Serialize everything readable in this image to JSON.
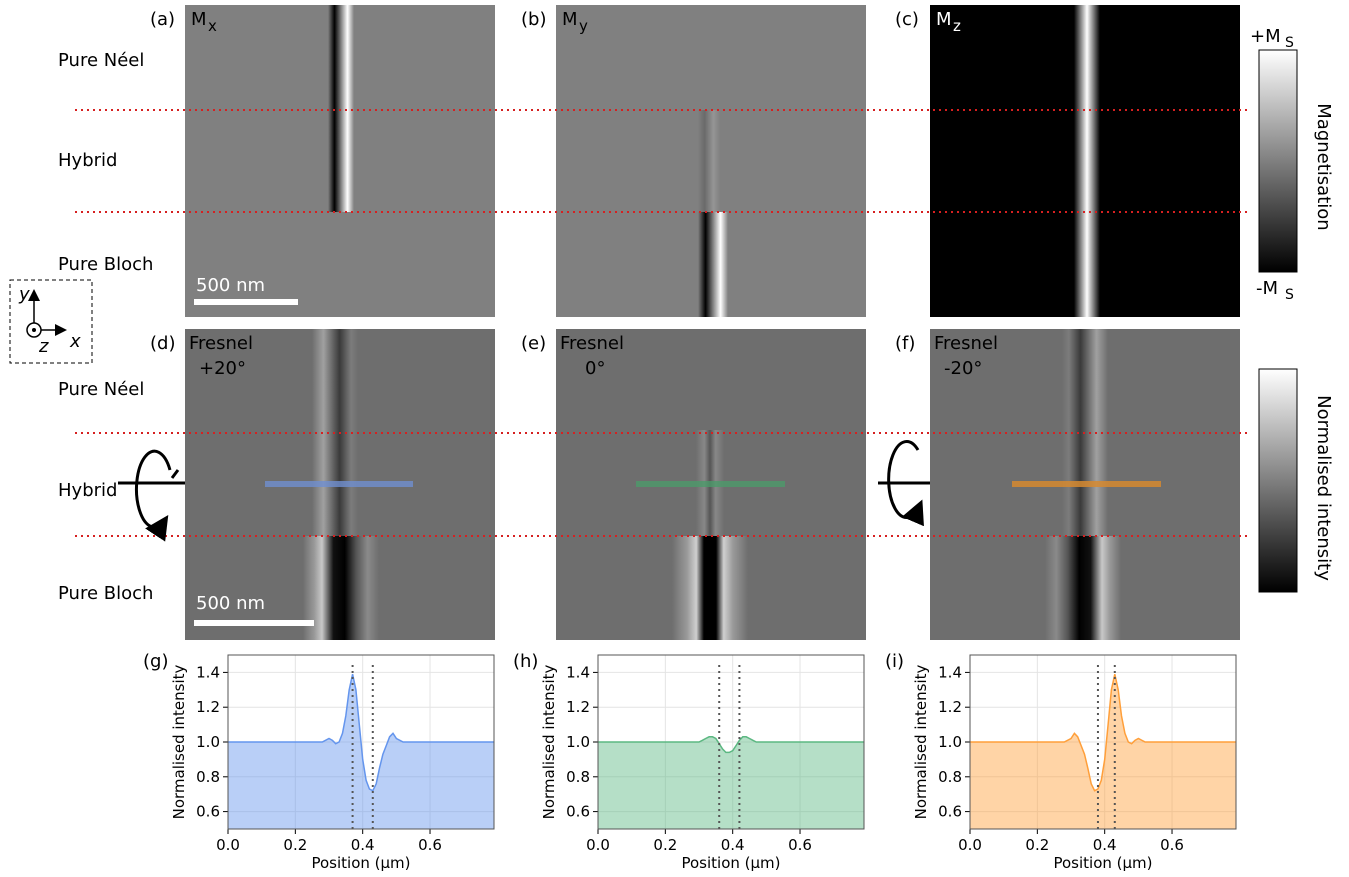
{
  "panels": [
    {
      "label": "(a)",
      "title": "M",
      "subscript": "x"
    },
    {
      "label": "(b)",
      "title": "M",
      "subscript": "y"
    },
    {
      "label": "(c)",
      "title": "M",
      "subscript": "z"
    },
    {
      "label": "(d)",
      "title": "Fresnel",
      "angle": "+20°"
    },
    {
      "label": "(e)",
      "title": "Fresnel",
      "angle": "0°"
    },
    {
      "label": "(f)",
      "title": "Fresnel",
      "angle": "-20°"
    }
  ],
  "row_labels": [
    "Pure Néel",
    "Hybrid",
    "Pure Bloch"
  ],
  "scale_bar": "500 nm",
  "axes_icon": {
    "y": "y",
    "z": "z",
    "x": "x"
  },
  "colorbars": [
    {
      "label": "Magnetisation",
      "top": "+M",
      "top_sub": "S",
      "bottom": "-M",
      "bottom_sub": "S"
    },
    {
      "label": "Normalised intensity"
    }
  ],
  "chart_data": [
    {
      "type": "line",
      "label": "(g)",
      "xlabel": "Position (µm)",
      "ylabel": "Normalised intensity",
      "color": "#6495ed",
      "x": [
        0,
        0.2,
        0.25,
        0.28,
        0.3,
        0.31,
        0.32,
        0.33,
        0.34,
        0.35,
        0.36,
        0.37,
        0.38,
        0.39,
        0.4,
        0.41,
        0.42,
        0.43,
        0.44,
        0.45,
        0.46,
        0.47,
        0.48,
        0.49,
        0.5,
        0.52,
        0.55,
        0.6,
        0.79
      ],
      "values": [
        1.0,
        1.0,
        1.0,
        1.0,
        1.02,
        1.01,
        0.99,
        1.0,
        1.05,
        1.15,
        1.3,
        1.39,
        1.3,
        1.1,
        0.9,
        0.78,
        0.73,
        0.72,
        0.76,
        0.85,
        0.93,
        0.98,
        1.03,
        1.05,
        1.02,
        1.0,
        1.0,
        1.0,
        1.0
      ],
      "vlines": [
        0.37,
        0.43
      ],
      "xlim": [
        0,
        0.79
      ],
      "ylim": [
        0.5,
        1.5
      ],
      "xticks": [
        {
          "value": 0,
          "label": "0.0"
        },
        0.2,
        0.4,
        0.6
      ],
      "yticks": [
        0.6,
        0.8,
        {
          "value": 1,
          "label": "1.0"
        },
        1.2,
        1.4
      ],
      "grid": true
    },
    {
      "type": "line",
      "label": "(h)",
      "xlabel": "Position (µm)",
      "ylabel": "Normalised intensity",
      "color": "#5cb882",
      "x": [
        0,
        0.2,
        0.25,
        0.28,
        0.3,
        0.31,
        0.32,
        0.33,
        0.34,
        0.35,
        0.36,
        0.37,
        0.38,
        0.39,
        0.4,
        0.41,
        0.42,
        0.43,
        0.44,
        0.45,
        0.46,
        0.47,
        0.48,
        0.49,
        0.5,
        0.52,
        0.55,
        0.6,
        0.79
      ],
      "values": [
        1.0,
        1.0,
        1.0,
        1.0,
        1.0,
        1.01,
        1.02,
        1.03,
        1.03,
        1.02,
        0.99,
        0.96,
        0.94,
        0.94,
        0.95,
        0.98,
        1.01,
        1.03,
        1.03,
        1.02,
        1.01,
        1.0,
        1.0,
        1.0,
        1.0,
        1.0,
        1.0,
        1.0,
        1.0
      ],
      "vlines": [
        0.36,
        0.42
      ],
      "xlim": [
        0,
        0.79
      ],
      "ylim": [
        0.5,
        1.5
      ],
      "xticks": [
        {
          "value": 0,
          "label": "0.0"
        },
        0.2,
        0.4,
        0.6
      ],
      "yticks": [
        0.6,
        0.8,
        {
          "value": 1,
          "label": "1.0"
        },
        1.2,
        1.4
      ],
      "grid": true
    },
    {
      "type": "line",
      "label": "(i)",
      "xlabel": "Position (µm)",
      "ylabel": "Normalised intensity",
      "color": "#ff9f3a",
      "x": [
        0,
        0.2,
        0.25,
        0.28,
        0.3,
        0.31,
        0.32,
        0.33,
        0.34,
        0.35,
        0.36,
        0.37,
        0.38,
        0.39,
        0.4,
        0.41,
        0.42,
        0.43,
        0.44,
        0.45,
        0.46,
        0.47,
        0.48,
        0.49,
        0.5,
        0.52,
        0.55,
        0.6,
        0.79
      ],
      "values": [
        1.0,
        1.0,
        1.0,
        1.0,
        1.02,
        1.05,
        1.03,
        0.98,
        0.93,
        0.85,
        0.76,
        0.72,
        0.73,
        0.78,
        0.9,
        1.1,
        1.3,
        1.39,
        1.3,
        1.15,
        1.05,
        1.0,
        0.99,
        1.01,
        1.02,
        1.0,
        1.0,
        1.0,
        1.0
      ],
      "vlines": [
        0.38,
        0.43
      ],
      "xlim": [
        0,
        0.79
      ],
      "ylim": [
        0.5,
        1.5
      ],
      "xticks": [
        {
          "value": 0,
          "label": "0.0"
        },
        0.2,
        0.4,
        0.6
      ],
      "yticks": [
        0.6,
        0.8,
        {
          "value": 1,
          "label": "1.0"
        },
        1.2,
        1.4
      ],
      "grid": true
    }
  ]
}
